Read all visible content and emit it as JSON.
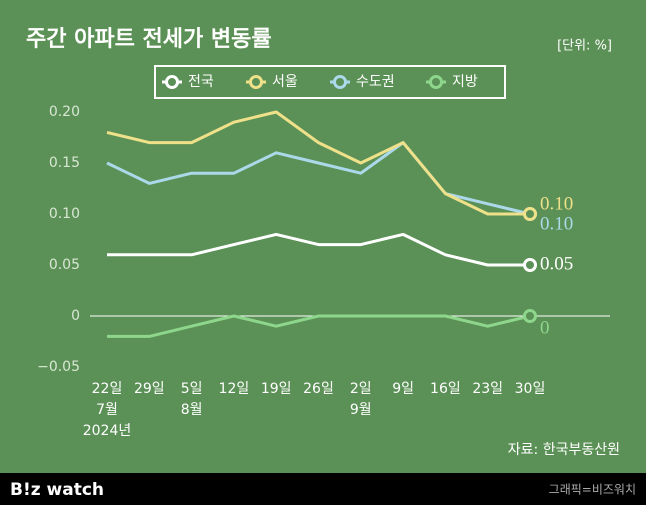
{
  "chart_data": {
    "type": "line",
    "title": "주간 아파트 전세가 변동률",
    "unit_note": "[단위: %]",
    "source": "자료: 한국부동산원",
    "categories": [
      [
        "22일",
        "7월",
        "2024년"
      ],
      [
        "29일"
      ],
      [
        "5일",
        "8월"
      ],
      [
        "12일"
      ],
      [
        "19일"
      ],
      [
        "26일"
      ],
      [
        "2일",
        "9월"
      ],
      [
        "9일"
      ],
      [
        "16일"
      ],
      [
        "23일"
      ],
      [
        "30일"
      ]
    ],
    "series": [
      {
        "name": "전국",
        "color": "#ffffff",
        "values": [
          0.06,
          0.06,
          0.06,
          0.07,
          0.08,
          0.07,
          0.07,
          0.08,
          0.06,
          0.05,
          0.05
        ],
        "end_label": "0.05"
      },
      {
        "name": "서울",
        "color": "#efe08a",
        "values": [
          0.18,
          0.17,
          0.17,
          0.19,
          0.2,
          0.17,
          0.15,
          0.17,
          0.12,
          0.1,
          0.1
        ],
        "end_label": "0.10"
      },
      {
        "name": "수도권",
        "color": "#acd9ea",
        "values": [
          0.15,
          0.13,
          0.14,
          0.14,
          0.16,
          0.15,
          0.14,
          0.17,
          0.12,
          0.11,
          0.1
        ],
        "end_label": "0.10"
      },
      {
        "name": "지방",
        "color": "#8ed68c",
        "values": [
          -0.02,
          -0.02,
          -0.01,
          0,
          -0.01,
          0,
          0,
          0,
          0,
          -0.01,
          0
        ],
        "end_label": "0"
      }
    ],
    "ylim": [
      -0.05,
      0.2
    ],
    "yticks": [
      {
        "value": 0.2,
        "label": "0.20"
      },
      0.15,
      {
        "value": 0.1,
        "label": "0.10"
      },
      0.05,
      0,
      {
        "value": -0.05,
        "label": "−0.05"
      }
    ],
    "zero_line": true,
    "background": "#5b9156"
  },
  "footer": {
    "logo": "B!z watch",
    "credit": "그래픽=비즈워치"
  }
}
